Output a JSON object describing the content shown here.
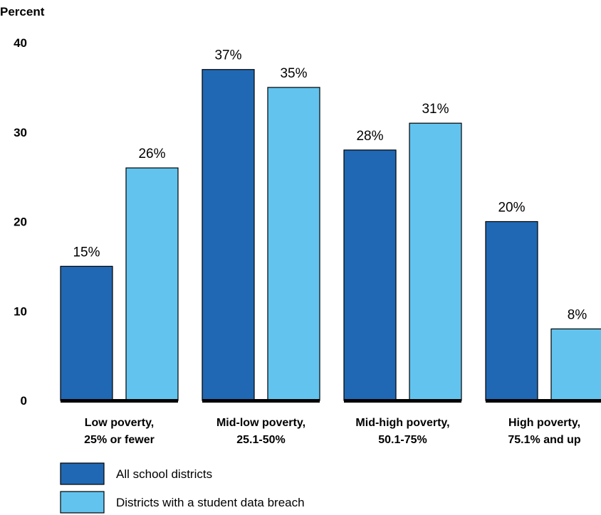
{
  "chart_data": {
    "type": "bar",
    "ylabel": "Percent",
    "ylim": [
      0,
      40
    ],
    "yticks": [
      "0",
      "10",
      "20",
      "30",
      "40"
    ],
    "grid": false,
    "legend_placement": "bottom-left",
    "categories": [
      [
        "Low poverty,",
        "25% or fewer"
      ],
      [
        "Mid-low poverty,",
        "25.1-50%"
      ],
      [
        "Mid-high poverty,",
        "50.1-75%"
      ],
      [
        "High poverty,",
        "75.1% and up"
      ]
    ],
    "series": [
      {
        "name": "All school districts",
        "color": "#2068b3",
        "values": [
          15,
          37,
          28,
          20
        ],
        "labels": [
          "15%",
          "37%",
          "28%",
          "20%"
        ]
      },
      {
        "name": "Districts with a student data breach",
        "color": "#62c4ee",
        "values": [
          26,
          35,
          31,
          8
        ],
        "labels": [
          "26%",
          "35%",
          "31%",
          "8%"
        ]
      }
    ]
  }
}
